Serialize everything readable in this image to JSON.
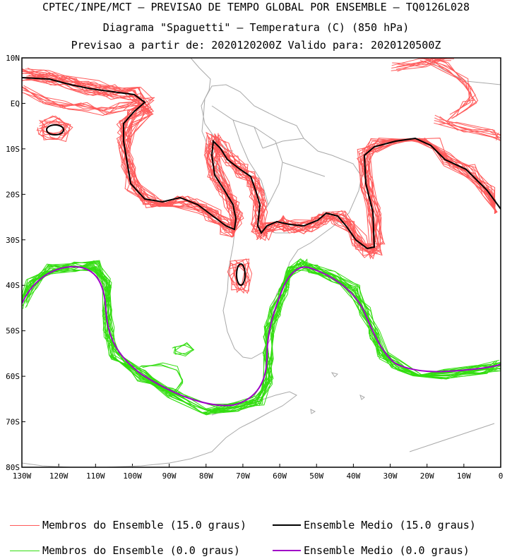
{
  "header": {
    "line1": "CPTEC/INPE/MCT — PREVISAO DE TEMPO GLOBAL POR ENSEMBLE — TQ0126L028",
    "line2": "Diagrama \"Spaguetti\" — Temperatura (C) (850 hPa)",
    "line3": "Previsao a partir de: 2020120200Z  Valido para: 2020120500Z"
  },
  "map": {
    "lat_labels": [
      "10N",
      "EQ",
      "10S",
      "20S",
      "30S",
      "40S",
      "50S",
      "60S",
      "70S",
      "80S"
    ],
    "lon_labels": [
      "130W",
      "120W",
      "110W",
      "100W",
      "90W",
      "80W",
      "70W",
      "60W",
      "50W",
      "40W",
      "30W",
      "20W",
      "10W",
      "0"
    ],
    "lat_values": [
      10,
      0,
      -10,
      -20,
      -30,
      -40,
      -50,
      -60,
      -70,
      -80
    ],
    "lon_values": [
      -130,
      -120,
      -110,
      -100,
      -90,
      -80,
      -70,
      -60,
      -50,
      -40,
      -30,
      -20,
      -10,
      0
    ],
    "extent": {
      "lon_min": -130,
      "lon_max": 0,
      "lat_min": -80,
      "lat_max": 10
    }
  },
  "legend": {
    "members_15": {
      "label": "Membros do Ensemble (15.0 graus)",
      "color": "#ff5a5a"
    },
    "mean_15": {
      "label": "Ensemble Medio (15.0 graus)",
      "color": "#000000"
    },
    "members_0": {
      "label": "Membros do Ensemble (0.0 graus)",
      "color": "#33dd11"
    },
    "mean_0": {
      "label": "Ensemble Medio (0.0 graus)",
      "color": "#a000c8"
    }
  },
  "colors": {
    "land": "#a9a9a9",
    "frame": "#000000"
  }
}
